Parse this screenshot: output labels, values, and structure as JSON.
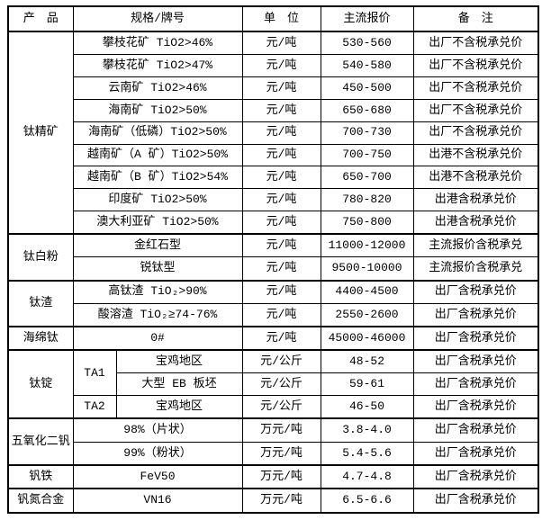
{
  "colors": {
    "border": "#000000",
    "text": "#000000",
    "background": "#ffffff"
  },
  "table": {
    "header": {
      "product": "产　品",
      "spec": "规格/牌号",
      "unit": "单　位",
      "price": "主流报价",
      "note": "备　注"
    },
    "sections": [
      {
        "product": "钛精矿",
        "rows": [
          {
            "spec": "攀枝花矿 TiO2>46%",
            "unit": "元/吨",
            "price": "530-560",
            "note": "出厂不含税承兑价"
          },
          {
            "spec": "攀枝花矿 TiO2>47%",
            "unit": "元/吨",
            "price": "540-580",
            "note": "出厂不含税承兑价"
          },
          {
            "spec": "云南矿 TiO2>46%",
            "unit": "元/吨",
            "price": "450-500",
            "note": "出厂不含税承兑价"
          },
          {
            "spec": "海南矿 TiO2>50%",
            "unit": "元/吨",
            "price": "650-680",
            "note": "出厂不含税承兑价"
          },
          {
            "spec": "海南矿（低磷）TiO2>50%",
            "unit": "元/吨",
            "price": "700-730",
            "note": "出厂不含税承兑价"
          },
          {
            "spec": "越南矿（A 矿）TiO2>50%",
            "unit": "元/吨",
            "price": "700-750",
            "note": "出港不含税承兑价"
          },
          {
            "spec": "越南矿（B 矿）TiO2>54%",
            "unit": "元/吨",
            "price": "650-700",
            "note": "出港不含税承兑价"
          },
          {
            "spec": "印度矿 TiO2>50%",
            "unit": "元/吨",
            "price": "780-820",
            "note": "出港含税承兑价"
          },
          {
            "spec": "澳大利亚矿 TiO2>50%",
            "unit": "元/吨",
            "price": "750-800",
            "note": "出港含税承兑价"
          }
        ]
      },
      {
        "product": "钛白粉",
        "rows": [
          {
            "spec": "金红石型",
            "unit": "元/吨",
            "price": "11000-12000",
            "note": "主流报价含税承兑"
          },
          {
            "spec": "锐钛型",
            "unit": "元/吨",
            "price": "9500-10000",
            "note": "主流报价含税承兑"
          }
        ]
      },
      {
        "product": "钛渣",
        "rows": [
          {
            "spec": "高钛渣 TiO₂>90%",
            "unit": "元/吨",
            "price": "4400-4500",
            "note": "出厂含税承兑价"
          },
          {
            "spec": "酸溶渣 TiO₂≥74-76%",
            "unit": "元/吨",
            "price": "2550-2600",
            "note": "出厂含税承兑价"
          }
        ]
      },
      {
        "product": "海绵钛",
        "rows": [
          {
            "spec": "0#",
            "unit": "元/吨",
            "price": "45000-46000",
            "note": "出厂含税承兑价"
          }
        ]
      },
      {
        "product": "钛锭",
        "rows": [
          {
            "grade": "TA1",
            "grade_rowspan": 2,
            "spec": "宝鸡地区",
            "unit": "元/公斤",
            "price": "48-52",
            "note": "出厂含税承兑价"
          },
          {
            "under_grade": true,
            "spec": "大型 EB 板坯",
            "unit": "元/公斤",
            "price": "59-61",
            "note": "出厂含税承兑价"
          },
          {
            "grade": "TA2",
            "grade_rowspan": 1,
            "spec": "宝鸡地区",
            "unit": "元/公斤",
            "price": "46-50",
            "note": "出厂含税承兑价"
          }
        ]
      },
      {
        "product": "五氧化二钒",
        "rows": [
          {
            "spec": "98%（片状）",
            "unit": "万元/吨",
            "price": "3.8-4.0",
            "note": "出厂含税承兑价"
          },
          {
            "spec": "99%（粉状）",
            "unit": "万元/吨",
            "price": "5.4-5.6",
            "note": "出厂含税承兑价"
          }
        ]
      },
      {
        "product": "钒铁",
        "rows": [
          {
            "spec": "FeV50",
            "unit": "万元/吨",
            "price": "4.7-4.8",
            "note": "出厂含税承兑价"
          }
        ]
      },
      {
        "product": "钒氮合金",
        "rows": [
          {
            "spec": "VN16",
            "unit": "万元/吨",
            "price": "6.5-6.6",
            "note": "出厂含税承兑价"
          }
        ]
      }
    ]
  }
}
